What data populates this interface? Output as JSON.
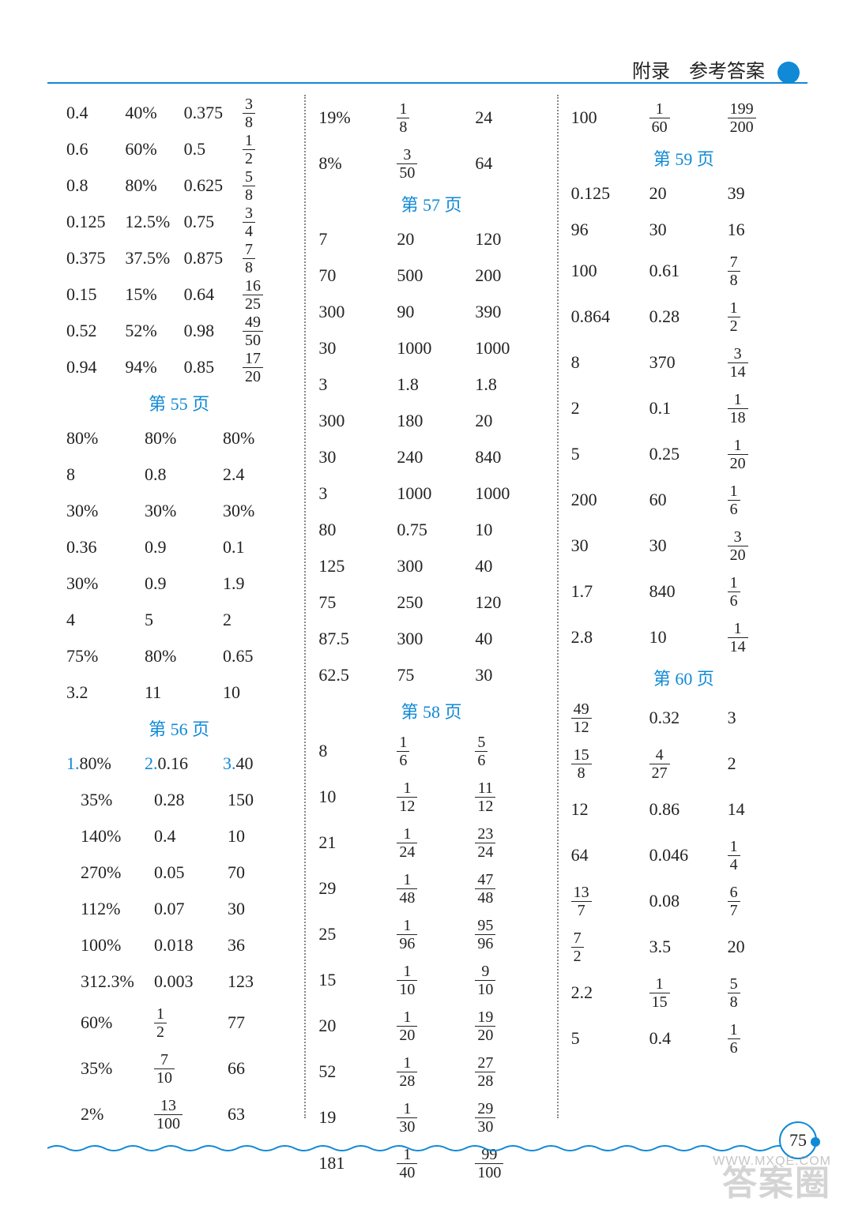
{
  "header": {
    "text": "附录　参考答案"
  },
  "page_number": "75",
  "watermark_main": "答案圈",
  "watermark_url": "WWW.MXQE.COM",
  "columns": [
    {
      "blocks": [
        {
          "type": "rows4",
          "rows": [
            [
              "0.4",
              "40%",
              "0.375",
              {
                "f": [
                  3,
                  8
                ]
              }
            ],
            [
              "0.6",
              "60%",
              "0.5",
              {
                "f": [
                  1,
                  2
                ]
              }
            ],
            [
              "0.8",
              "80%",
              "0.625",
              {
                "f": [
                  5,
                  8
                ]
              }
            ],
            [
              "0.125",
              "12.5%",
              "0.75",
              {
                "f": [
                  3,
                  4
                ]
              }
            ],
            [
              "0.375",
              "37.5%",
              "0.875",
              {
                "f": [
                  7,
                  8
                ]
              }
            ],
            [
              "0.15",
              "15%",
              "0.64",
              {
                "f": [
                  16,
                  25
                ]
              }
            ],
            [
              "0.52",
              "52%",
              "0.98",
              {
                "f": [
                  49,
                  50
                ]
              }
            ],
            [
              "0.94",
              "94%",
              "0.85",
              {
                "f": [
                  17,
                  20
                ]
              }
            ]
          ]
        },
        {
          "type": "label",
          "text": "第 55 页"
        },
        {
          "type": "rows3",
          "rows": [
            [
              "80%",
              "80%",
              "80%"
            ],
            [
              "8",
              "0.8",
              "2.4"
            ],
            [
              "30%",
              "30%",
              "30%"
            ],
            [
              "0.36",
              "0.9",
              "0.1"
            ],
            [
              "30%",
              "0.9",
              "1.9"
            ],
            [
              "4",
              "5",
              "2"
            ],
            [
              "75%",
              "80%",
              "0.65"
            ],
            [
              "3.2",
              "11",
              "10"
            ]
          ]
        },
        {
          "type": "label",
          "text": "第 56 页"
        },
        {
          "type": "rows3num",
          "rows": [
            [
              {
                "n": "1.",
                "v": "80%"
              },
              {
                "n": "2.",
                "v": "0.16"
              },
              {
                "n": "3.",
                "v": "40"
              }
            ]
          ]
        },
        {
          "type": "rows3",
          "indent": true,
          "rows": [
            [
              "35%",
              "0.28",
              "150"
            ],
            [
              "140%",
              "0.4",
              "10"
            ],
            [
              "270%",
              "0.05",
              "70"
            ],
            [
              "112%",
              "0.07",
              "30"
            ],
            [
              "100%",
              "0.018",
              "36"
            ],
            [
              "312.3%",
              "0.003",
              "123"
            ]
          ]
        },
        {
          "type": "rows3",
          "indent": true,
          "tall": true,
          "rows": [
            [
              "60%",
              {
                "f": [
                  1,
                  2
                ]
              },
              "77"
            ],
            [
              "35%",
              {
                "f": [
                  7,
                  10
                ]
              },
              "66"
            ],
            [
              "2%",
              {
                "f": [
                  13,
                  100
                ]
              },
              "63"
            ]
          ]
        }
      ]
    },
    {
      "blocks": [
        {
          "type": "rows3",
          "tall": true,
          "rows": [
            [
              "19%",
              {
                "f": [
                  1,
                  8
                ]
              },
              "24"
            ],
            [
              "8%",
              {
                "f": [
                  3,
                  50
                ]
              },
              "64"
            ]
          ]
        },
        {
          "type": "label",
          "text": "第 57 页"
        },
        {
          "type": "rows3",
          "rows": [
            [
              "7",
              "20",
              "120"
            ],
            [
              "70",
              "500",
              "200"
            ],
            [
              "300",
              "90",
              "390"
            ],
            [
              "30",
              "1000",
              "1000"
            ],
            [
              "3",
              "1.8",
              "1.8"
            ],
            [
              "300",
              "180",
              "20"
            ],
            [
              "30",
              "240",
              "840"
            ],
            [
              "3",
              "1000",
              "1000"
            ],
            [
              "80",
              "0.75",
              "10"
            ],
            [
              "125",
              "300",
              "40"
            ],
            [
              "75",
              "250",
              "120"
            ],
            [
              "87.5",
              "300",
              "40"
            ],
            [
              "62.5",
              "75",
              "30"
            ]
          ]
        },
        {
          "type": "label",
          "text": "第 58 页"
        },
        {
          "type": "rows3",
          "tall": true,
          "rows": [
            [
              "8",
              {
                "f": [
                  1,
                  6
                ]
              },
              {
                "f": [
                  5,
                  6
                ]
              }
            ],
            [
              "10",
              {
                "f": [
                  1,
                  12
                ]
              },
              {
                "f": [
                  11,
                  12
                ]
              }
            ],
            [
              "21",
              {
                "f": [
                  1,
                  24
                ]
              },
              {
                "f": [
                  23,
                  24
                ]
              }
            ],
            [
              "29",
              {
                "f": [
                  1,
                  48
                ]
              },
              {
                "f": [
                  47,
                  48
                ]
              }
            ],
            [
              "25",
              {
                "f": [
                  1,
                  96
                ]
              },
              {
                "f": [
                  95,
                  96
                ]
              }
            ],
            [
              "15",
              {
                "f": [
                  1,
                  10
                ]
              },
              {
                "f": [
                  9,
                  10
                ]
              }
            ],
            [
              "20",
              {
                "f": [
                  1,
                  20
                ]
              },
              {
                "f": [
                  19,
                  20
                ]
              }
            ],
            [
              "52",
              {
                "f": [
                  1,
                  28
                ]
              },
              {
                "f": [
                  27,
                  28
                ]
              }
            ],
            [
              "19",
              {
                "f": [
                  1,
                  30
                ]
              },
              {
                "f": [
                  29,
                  30
                ]
              }
            ],
            [
              "181",
              {
                "f": [
                  1,
                  40
                ]
              },
              {
                "f": [
                  99,
                  100
                ]
              }
            ]
          ]
        }
      ]
    },
    {
      "blocks": [
        {
          "type": "rows3",
          "tall": true,
          "rows": [
            [
              "100",
              {
                "f": [
                  1,
                  60
                ]
              },
              {
                "f": [
                  199,
                  200
                ]
              }
            ]
          ]
        },
        {
          "type": "label",
          "text": "第 59 页"
        },
        {
          "type": "rows3",
          "rows": [
            [
              "0.125",
              "20",
              "39"
            ],
            [
              "96",
              "30",
              "16"
            ]
          ]
        },
        {
          "type": "rows3",
          "tall": true,
          "rows": [
            [
              "100",
              "0.61",
              {
                "f": [
                  7,
                  8
                ]
              }
            ],
            [
              "0.864",
              "0.28",
              {
                "f": [
                  1,
                  2
                ]
              }
            ],
            [
              "8",
              "370",
              {
                "f": [
                  3,
                  14
                ]
              }
            ],
            [
              "2",
              "0.1",
              {
                "f": [
                  1,
                  18
                ]
              }
            ],
            [
              "5",
              "0.25",
              {
                "f": [
                  1,
                  20
                ]
              }
            ],
            [
              "200",
              "60",
              {
                "f": [
                  1,
                  6
                ]
              }
            ],
            [
              "30",
              "30",
              {
                "f": [
                  3,
                  20
                ]
              }
            ],
            [
              "1.7",
              "840",
              {
                "f": [
                  1,
                  6
                ]
              }
            ],
            [
              "2.8",
              "10",
              {
                "f": [
                  1,
                  14
                ]
              }
            ]
          ]
        },
        {
          "type": "label",
          "text": "第 60 页"
        },
        {
          "type": "rows3",
          "tall": true,
          "rows": [
            [
              {
                "f": [
                  49,
                  12
                ]
              },
              "0.32",
              "3"
            ],
            [
              {
                "f": [
                  15,
                  8
                ]
              },
              {
                "f": [
                  4,
                  27
                ]
              },
              "2"
            ],
            [
              "12",
              "0.86",
              "14"
            ],
            [
              "64",
              "0.046",
              {
                "f": [
                  1,
                  4
                ]
              }
            ],
            [
              {
                "f": [
                  13,
                  7
                ]
              },
              "0.08",
              {
                "f": [
                  6,
                  7
                ]
              }
            ],
            [
              {
                "f": [
                  7,
                  2
                ]
              },
              "3.5",
              "20"
            ],
            [
              "2.2",
              {
                "f": [
                  1,
                  15
                ]
              },
              {
                "f": [
                  5,
                  8
                ]
              }
            ],
            [
              "5",
              "0.4",
              {
                "f": [
                  1,
                  6
                ]
              }
            ]
          ]
        }
      ]
    }
  ]
}
